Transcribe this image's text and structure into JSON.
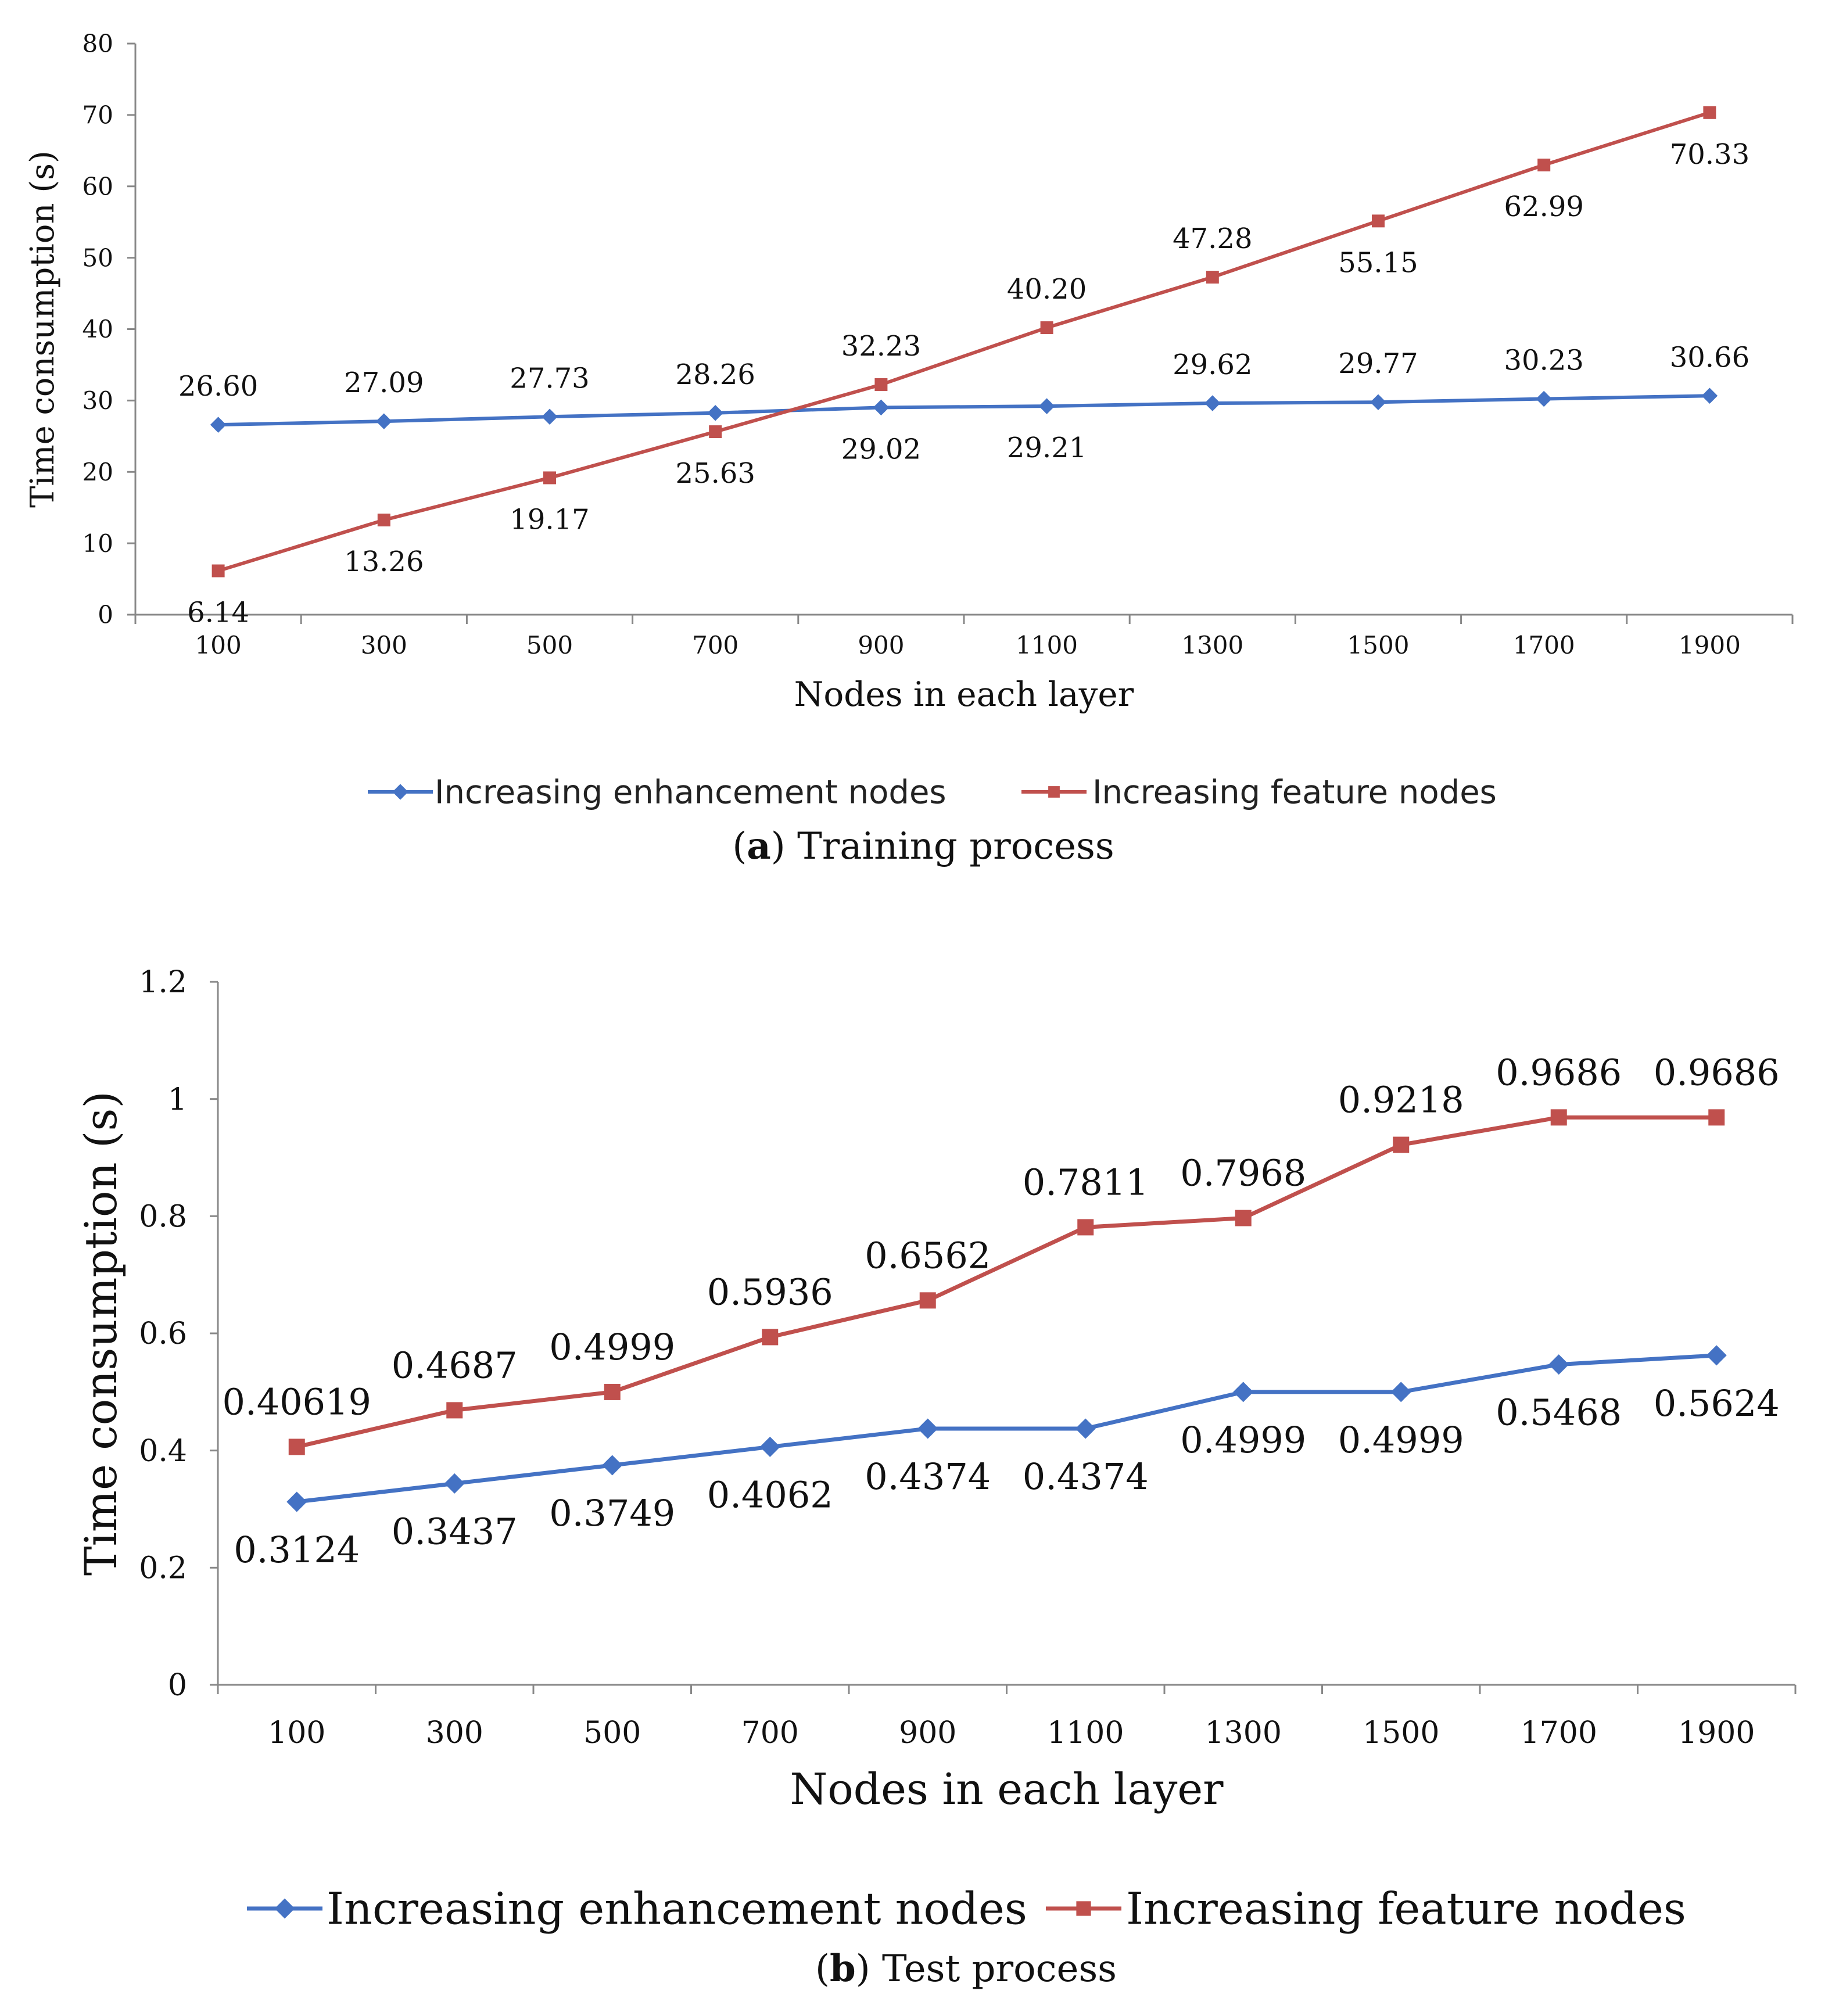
{
  "chart_data": [
    {
      "type": "line",
      "panel": "a",
      "caption_letter": "a",
      "caption_open": "(",
      "caption_close": ")",
      "caption_text": " Training process",
      "xlabel": "Nodes in each layer",
      "ylabel": "Time consumption (s)",
      "categories": [
        "100",
        "300",
        "500",
        "700",
        "900",
        "1100",
        "1300",
        "1500",
        "1700",
        "1900"
      ],
      "ylim": [
        0,
        80
      ],
      "yticks": [
        0,
        10,
        20,
        30,
        40,
        50,
        60,
        70,
        80
      ],
      "legend_position": "bottom",
      "series": [
        {
          "name": "Increasing enhancement nodes",
          "color": "#4472C4",
          "marker": "diamond",
          "values": [
            26.6,
            27.09,
            27.73,
            28.26,
            29.02,
            29.21,
            29.62,
            29.77,
            30.23,
            30.66
          ],
          "labels": [
            "26.60",
            "27.09",
            "27.73",
            "28.26",
            "29.02",
            "29.21",
            "29.62",
            "29.77",
            "30.23",
            "30.66"
          ],
          "label_pos": [
            "above",
            "above",
            "above",
            "above",
            "below",
            "below",
            "above",
            "above",
            "above",
            "above"
          ]
        },
        {
          "name": "Increasing feature nodes",
          "color": "#C0504D",
          "marker": "square",
          "values": [
            6.14,
            13.26,
            19.17,
            25.63,
            32.23,
            40.2,
            47.28,
            55.15,
            62.99,
            70.33
          ],
          "labels": [
            "6.14",
            "13.26",
            "19.17",
            "25.63",
            "32.23",
            "40.20",
            "47.28",
            "55.15",
            "62.99",
            "70.33"
          ],
          "label_pos": [
            "below",
            "below",
            "below",
            "below",
            "above",
            "above",
            "above",
            "below",
            "below",
            "below"
          ]
        }
      ]
    },
    {
      "type": "line",
      "panel": "b",
      "caption_letter": "b",
      "caption_open": "(",
      "caption_close": ")",
      "caption_text": " Test process",
      "xlabel": "Nodes in each layer",
      "ylabel": "Time consumption (s)",
      "categories": [
        "100",
        "300",
        "500",
        "700",
        "900",
        "1100",
        "1300",
        "1500",
        "1700",
        "1900"
      ],
      "ylim": [
        0,
        1.2
      ],
      "yticks": [
        "0",
        "0.2",
        "0.4",
        "0.6",
        "0.8",
        "1",
        "1.2"
      ],
      "legend_position": "bottom",
      "series": [
        {
          "name": "Increasing enhancement nodes",
          "color": "#4472C4",
          "marker": "diamond",
          "values": [
            0.3124,
            0.3437,
            0.3749,
            0.4062,
            0.4374,
            0.4374,
            0.4999,
            0.4999,
            0.5468,
            0.5624
          ],
          "labels": [
            "0.3124",
            "0.3437",
            "0.3749",
            "0.4062",
            "0.4374",
            "0.4374",
            "0.4999",
            "0.4999",
            "0.5468",
            "0.5624"
          ],
          "label_pos": [
            "below",
            "below",
            "below",
            "below",
            "below",
            "below",
            "below",
            "below",
            "below",
            "below"
          ]
        },
        {
          "name": "Increasing feature nodes",
          "color": "#C0504D",
          "marker": "square",
          "values": [
            0.40619,
            0.4687,
            0.4999,
            0.5936,
            0.6562,
            0.7811,
            0.7968,
            0.9218,
            0.9686,
            0.9686
          ],
          "labels": [
            "0.40619",
            "0.4687",
            "0.4999",
            "0.5936",
            "0.6562",
            "0.7811",
            "0.7968",
            "0.9218",
            "0.9686",
            "0.9686"
          ],
          "label_pos": [
            "above",
            "above",
            "above",
            "above",
            "above",
            "above",
            "above",
            "above",
            "above",
            "above"
          ]
        }
      ]
    }
  ]
}
